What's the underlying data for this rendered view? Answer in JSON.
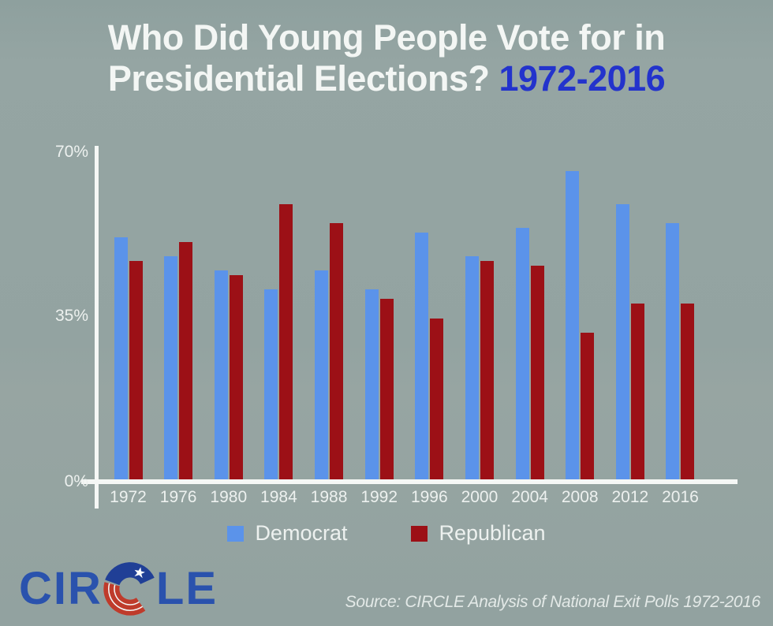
{
  "title": {
    "line1": "Who Did Young People Vote for in",
    "line2": "Presidential Elections?",
    "years": "1972-2016"
  },
  "axis": {
    "y_ticks": {
      "top": "70%",
      "middle": "35%",
      "bottom": "0%"
    }
  },
  "chart_data": {
    "type": "bar",
    "title": "Who Did Young People Vote for in Presidential Elections? 1972-2016",
    "categories": [
      "1972",
      "1976",
      "1980",
      "1984",
      "1988",
      "1992",
      "1996",
      "2000",
      "2004",
      "2008",
      "2012",
      "2016"
    ],
    "series": [
      {
        "name": "Democrat",
        "color": "#5b93ea",
        "values": [
          51,
          47,
          44,
          40,
          44,
          40,
          52,
          47,
          53,
          65,
          58,
          54
        ]
      },
      {
        "name": "Republican",
        "color": "#9c1016",
        "values": [
          46,
          50,
          43,
          58,
          54,
          38,
          34,
          46,
          45,
          31,
          37,
          37
        ]
      }
    ],
    "xlabel": "",
    "ylabel": "",
    "ylim": [
      0,
      70
    ],
    "y_tick_labels": [
      "0%",
      "35%",
      "70%"
    ],
    "grid": false,
    "legend_position": "bottom"
  },
  "legend": {
    "items": [
      {
        "label": "Democrat",
        "color": "#5b93ea"
      },
      {
        "label": "Republican",
        "color": "#9c1016"
      }
    ]
  },
  "footer": {
    "logo_left": "CIR",
    "logo_right": "LE",
    "source": "Source: CIRCLE Analysis of National Exit Polls 1972-2016"
  },
  "colors": {
    "background": "#93a3a1",
    "democrat": "#5b93ea",
    "republican": "#9c1016",
    "title_text": "#f3f6f4",
    "title_accent": "#2333cc",
    "axis": "#f5f7f5",
    "label_text": "#edf1ef",
    "logo_blue": "#2a52ad",
    "flag_navy": "#203f96",
    "flag_red": "#bf3b2b",
    "source_text": "#e3e9e7"
  }
}
